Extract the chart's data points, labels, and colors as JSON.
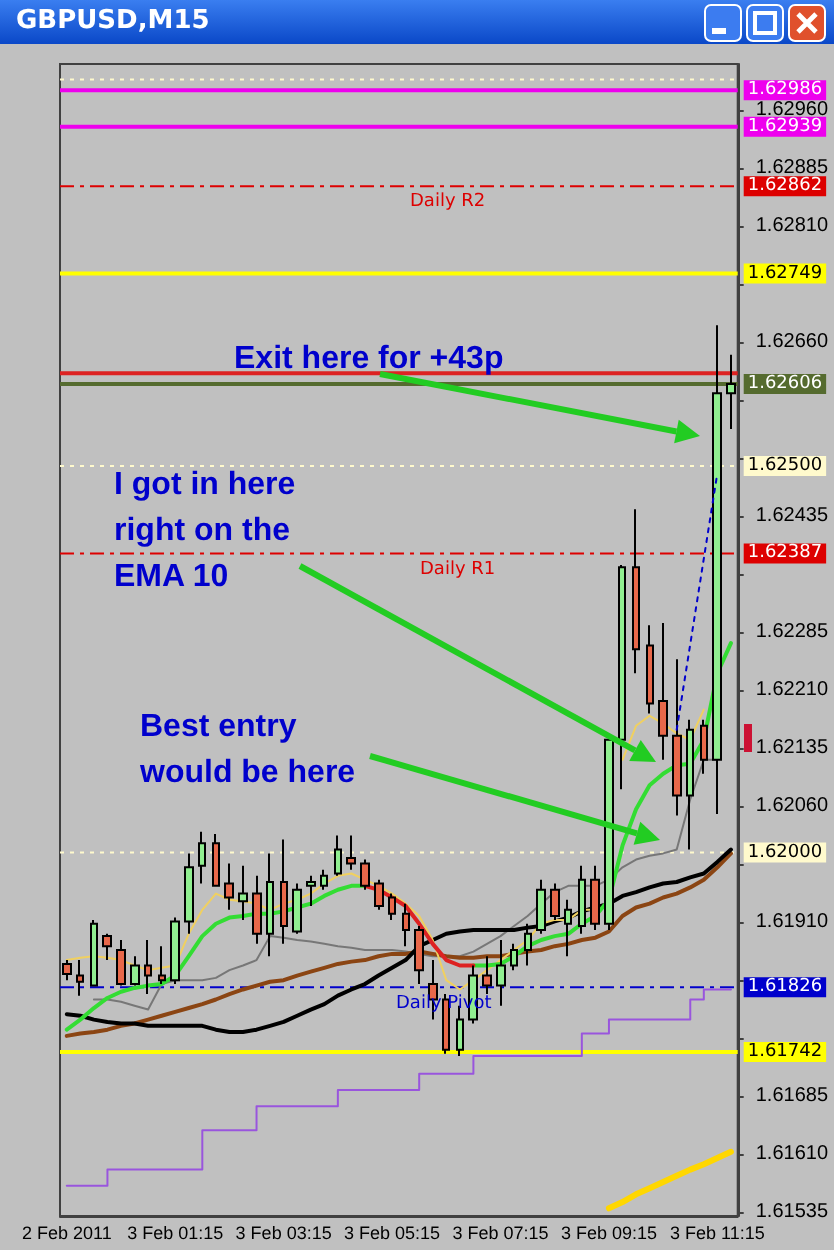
{
  "chart_data": {
    "type": "candlestick",
    "title": "GBPUSD,M15",
    "categories": [
      "2 Feb 2011",
      null,
      null,
      null,
      null,
      null,
      null,
      null,
      "3 Feb 01:15",
      null,
      null,
      null,
      null,
      null,
      null,
      null,
      "3 Feb 03:15",
      null,
      null,
      null,
      null,
      null,
      null,
      null,
      "3 Feb 05:15",
      null,
      null,
      null,
      null,
      null,
      null,
      null,
      "3 Feb 07:15",
      null,
      null,
      null,
      null,
      null,
      null,
      null,
      "3 Feb 09:15",
      null,
      null,
      null,
      null,
      null,
      null,
      null,
      "3 Feb 11:15",
      null
    ],
    "ohlc": [
      [
        1.61856,
        1.61861,
        1.61835,
        1.61843
      ],
      [
        1.61841,
        1.61861,
        1.61815,
        1.61833
      ],
      [
        1.61828,
        1.61913,
        1.61828,
        1.61908
      ],
      [
        1.61892,
        1.61895,
        1.61861,
        1.61879
      ],
      [
        1.61874,
        1.61887,
        1.61828,
        1.6183
      ],
      [
        1.6183,
        1.61866,
        1.61828,
        1.61854
      ],
      [
        1.61854,
        1.61887,
        1.61817,
        1.61841
      ],
      [
        1.61841,
        1.61879,
        1.6183,
        1.61835
      ],
      [
        1.61835,
        1.61916,
        1.6183,
        1.61911
      ],
      [
        1.61911,
        1.61999,
        1.61895,
        1.61981
      ],
      [
        1.61983,
        1.62027,
        1.6196,
        1.62012
      ],
      [
        1.62012,
        1.62024,
        1.61957,
        1.61957
      ],
      [
        1.6196,
        1.61986,
        1.61926,
        1.61942
      ],
      [
        1.61937,
        1.61983,
        1.61913,
        1.61947
      ],
      [
        1.61947,
        1.6197,
        1.61882,
        1.61895
      ],
      [
        1.61895,
        1.61999,
        1.61866,
        1.61962
      ],
      [
        1.61962,
        1.62017,
        1.61882,
        1.61905
      ],
      [
        1.61898,
        1.6196,
        1.61895,
        1.61952
      ],
      [
        1.61957,
        1.6197,
        1.61931,
        1.61962
      ],
      [
        1.61957,
        1.61978,
        1.61952,
        1.6197
      ],
      [
        1.61973,
        1.62022,
        1.6197,
        1.62004
      ],
      [
        1.61993,
        1.62022,
        1.61978,
        1.61986
      ],
      [
        1.61986,
        1.61991,
        1.61952,
        1.61957
      ],
      [
        1.6196,
        1.61965,
        1.61926,
        1.61931
      ],
      [
        1.61942,
        1.61947,
        1.61913,
        1.61921
      ],
      [
        1.61921,
        1.61934,
        1.61879,
        1.619
      ],
      [
        1.619,
        1.61905,
        1.6183,
        1.61848
      ],
      [
        1.6183,
        1.61861,
        1.61784,
        1.6181
      ],
      [
        1.6181,
        1.61817,
        1.6174,
        1.61745
      ],
      [
        1.61745,
        1.61802,
        1.61737,
        1.61784
      ],
      [
        1.61784,
        1.61854,
        1.61779,
        1.61841
      ],
      [
        1.61841,
        1.61866,
        1.61817,
        1.61828
      ],
      [
        1.61828,
        1.61887,
        1.61802,
        1.61854
      ],
      [
        1.61854,
        1.61882,
        1.61848,
        1.61874
      ],
      [
        1.61874,
        1.61908,
        1.61854,
        1.61895
      ],
      [
        1.619,
        1.61965,
        1.61895,
        1.61952
      ],
      [
        1.61952,
        1.6196,
        1.61913,
        1.61918
      ],
      [
        1.61908,
        1.61939,
        1.61866,
        1.61926
      ],
      [
        1.61905,
        1.61983,
        1.61895,
        1.61965
      ],
      [
        1.61965,
        1.61983,
        1.619,
        1.61908
      ],
      [
        1.61908,
        1.62146,
        1.619,
        1.62146
      ],
      [
        1.62146,
        1.62372,
        1.62082,
        1.62369
      ],
      [
        1.62369,
        1.62444,
        1.62232,
        1.62263
      ],
      [
        1.62268,
        1.62294,
        1.6218,
        1.62193
      ],
      [
        1.62196,
        1.62297,
        1.6212,
        1.62151
      ],
      [
        1.62151,
        1.6225,
        1.62048,
        1.62074
      ],
      [
        1.62074,
        1.62172,
        1.62004,
        1.62159
      ],
      [
        1.62164,
        1.62172,
        1.62102,
        1.6212
      ],
      [
        1.6212,
        1.62682,
        1.6205,
        1.62594
      ],
      [
        1.62594,
        1.62644,
        1.62548,
        1.62606
      ]
    ],
    "colors": [
      "#e8684a",
      "#e8684a",
      "#90ee90",
      "#e8684a",
      "#e8684a",
      "#90ee90",
      "#e8684a",
      "#e8684a",
      "#90ee90",
      "#90ee90",
      "#90ee90",
      "#e8684a",
      "#e8684a",
      "#90ee90",
      "#e8684a",
      "#90ee90",
      "#e8684a",
      "#90ee90",
      "#90ee90",
      "#90ee90",
      "#90ee90",
      "#e8684a",
      "#e8684a",
      "#e8684a",
      "#e8684a",
      "#e8684a",
      "#e8684a",
      "#e8684a",
      "#e8684a",
      "#90ee90",
      "#90ee90",
      "#e8684a",
      "#90ee90",
      "#90ee90",
      "#90ee90",
      "#90ee90",
      "#e8684a",
      "#90ee90",
      "#90ee90",
      "#e8684a",
      "#90ee90",
      "#90ee90",
      "#e8684a",
      "#e8684a",
      "#e8684a",
      "#e8684a",
      "#90ee90",
      "#e8684a",
      "#90ee90",
      "#90ee90"
    ],
    "series": [
      {
        "type": "step",
        "color": "#9955dd",
        "values": [
          1.61569,
          1.61569,
          1.61569,
          1.6159,
          1.6159,
          1.6159,
          1.6159,
          1.6159,
          1.6159,
          1.6159,
          1.61641,
          1.61641,
          1.61641,
          1.61641,
          1.61672,
          1.61672,
          1.61672,
          1.61672,
          1.61672,
          1.61672,
          1.61693,
          1.61693,
          1.61693,
          1.61693,
          1.61693,
          1.61693,
          1.61714,
          1.61714,
          1.61714,
          1.61714,
          1.61737,
          1.61737,
          1.61737,
          1.61737,
          1.61737,
          1.61737,
          1.61737,
          1.61737,
          1.61766,
          1.61766,
          1.61784,
          1.61784,
          1.61784,
          1.61784,
          1.61784,
          1.61784,
          1.6181,
          1.61823,
          1.61823,
          1.61823
        ]
      },
      {
        "type": "line",
        "color": "#ffd700",
        "values": [
          null,
          null,
          null,
          null,
          null,
          null,
          null,
          null,
          null,
          null,
          null,
          null,
          null,
          null,
          null,
          null,
          null,
          null,
          null,
          null,
          null,
          null,
          null,
          null,
          null,
          null,
          null,
          null,
          null,
          null,
          null,
          null,
          null,
          null,
          null,
          null,
          null,
          null,
          null,
          null,
          1.6154,
          1.61548,
          1.61558,
          1.61566,
          1.61574,
          1.61582,
          1.6159,
          1.61597,
          1.61605,
          1.61613
        ]
      },
      {
        "type": "line",
        "color": "#777777",
        "values": [
          null,
          null,
          1.6181,
          1.6181,
          1.61807,
          1.61802,
          1.61797,
          1.6183,
          1.61835,
          1.61835,
          1.61835,
          1.61838,
          1.61848,
          1.61854,
          1.61861,
          1.61892,
          1.6189,
          1.61887,
          1.61885,
          1.61882,
          1.61879,
          1.61877,
          1.61874,
          1.61874,
          1.61874,
          1.61872,
          1.61869,
          1.61866,
          1.61866,
          1.61866,
          1.61872,
          1.61882,
          1.61892,
          1.61905,
          1.61918,
          1.61934,
          1.61949,
          1.61957,
          1.61957,
          1.61957,
          1.61965,
          1.61981,
          1.61991,
          1.61996,
          1.61999,
          1.62004,
          1.62069,
          1.6212,
          1.6212,
          null
        ]
      },
      {
        "type": "line",
        "color": "#8b4513",
        "values": [
          1.61763,
          1.61766,
          1.61768,
          1.61771,
          1.61776,
          1.61779,
          1.61784,
          1.61789,
          1.61794,
          1.61799,
          1.61804,
          1.6181,
          1.61817,
          1.61823,
          1.61828,
          1.61833,
          1.61835,
          1.61841,
          1.61846,
          1.61851,
          1.61856,
          1.61859,
          1.61861,
          1.61866,
          1.61869,
          1.61869,
          1.61872,
          1.61869,
          1.61866,
          1.61864,
          1.61864,
          1.61866,
          1.61866,
          1.61869,
          1.61872,
          1.61874,
          1.61879,
          1.61882,
          1.61887,
          1.6189,
          1.61898,
          1.61918,
          1.61929,
          1.61934,
          1.61942,
          1.61947,
          1.61955,
          1.61965,
          1.61981,
          1.61999
        ]
      },
      {
        "type": "line",
        "color": "#000000",
        "values": [
          1.61791,
          1.61789,
          1.61784,
          1.61781,
          1.61779,
          1.61779,
          1.61776,
          1.61776,
          1.61776,
          1.61776,
          1.61776,
          1.61771,
          1.61768,
          1.61768,
          1.61771,
          1.61776,
          1.61781,
          1.61789,
          1.61797,
          1.61804,
          1.61815,
          1.61823,
          1.6183,
          1.61841,
          1.61851,
          1.61861,
          1.61879,
          1.61887,
          1.61895,
          1.61898,
          1.619,
          1.619,
          1.619,
          1.619,
          1.61903,
          1.61905,
          1.61911,
          1.61916,
          1.61924,
          1.61929,
          1.61934,
          1.61944,
          1.61949,
          1.61955,
          1.6196,
          1.61962,
          1.61968,
          1.61973,
          1.61988,
          1.62004
        ]
      },
      {
        "type": "line",
        "color": "#f0d060",
        "values": [
          1.61861,
          1.61864,
          1.61866,
          1.61864,
          1.61861,
          1.61854,
          1.61848,
          1.61851,
          1.61854,
          1.61895,
          1.61926,
          1.61947,
          1.61939,
          1.61937,
          1.61934,
          1.61926,
          1.61934,
          1.61939,
          1.61947,
          1.6196,
          1.6197,
          1.61973,
          1.61965,
          1.61957,
          1.61947,
          1.61934,
          1.61918,
          1.61887,
          1.61835,
          1.61823,
          1.61835,
          1.61848,
          1.61861,
          1.61874,
          1.61887,
          1.61908,
          1.61913,
          1.61913,
          1.61926,
          1.61926,
          null,
          1.6212,
          1.62164,
          1.62177,
          1.62167,
          1.62154,
          1.62146,
          1.62185,
          null,
          null
        ]
      },
      {
        "type": "line",
        "color": "#33dd33",
        "values": [
          1.61771,
          1.61784,
          1.61799,
          1.61812,
          1.6182,
          1.61825,
          1.61828,
          1.6183,
          1.61841,
          1.61866,
          1.61892,
          1.61908,
          1.61916,
          1.61918,
          1.61921,
          1.61921,
          1.61924,
          1.61929,
          1.61934,
          1.61944,
          1.61952,
          1.61957,
          1.61957,
          null,
          null,
          null,
          null,
          null,
          null,
          null,
          1.61854,
          1.61854,
          1.61856,
          1.61866,
          1.61879,
          1.61887,
          1.61892,
          1.61895,
          1.61908,
          1.61918,
          1.61939,
          1.62009,
          1.62056,
          1.62087,
          1.62102,
          1.62113,
          1.62115,
          1.62146,
          1.62232,
          1.62271
        ]
      },
      {
        "type": "line",
        "color": "#dd2222",
        "values": [
          null,
          null,
          null,
          null,
          null,
          null,
          null,
          null,
          null,
          null,
          null,
          null,
          null,
          null,
          null,
          null,
          null,
          null,
          null,
          null,
          null,
          null,
          1.61957,
          1.61952,
          1.61942,
          1.61931,
          1.61908,
          1.61882,
          1.61861,
          1.61854,
          1.61854,
          null,
          null,
          null,
          null,
          null,
          null,
          null,
          null,
          null,
          null,
          null,
          null,
          null,
          null,
          null,
          null,
          null,
          null,
          null
        ]
      },
      {
        "type": "line",
        "color": "#0000cc",
        "line_style": "dotted",
        "values": [
          null,
          null,
          null,
          null,
          null,
          null,
          null,
          null,
          null,
          null,
          null,
          null,
          null,
          null,
          null,
          null,
          null,
          null,
          null,
          null,
          null,
          null,
          null,
          null,
          null,
          null,
          null,
          null,
          null,
          null,
          null,
          null,
          null,
          null,
          null,
          null,
          null,
          null,
          null,
          null,
          null,
          null,
          null,
          null,
          null,
          1.62159,
          null,
          null,
          1.62491,
          null
        ]
      }
    ],
    "ylim": [
      1.6153,
      1.6302
    ],
    "yticks": [
      1.61535,
      {
        "value": 1.6161,
        "label": "1.61610"
      },
      1.61685,
      {
        "value": 1.6176,
        "label": null
      },
      {
        "value": 1.61835,
        "label": null
      },
      {
        "value": 1.6191,
        "label": "1.61910"
      },
      {
        "value": 1.61985,
        "label": null
      },
      {
        "value": 1.6206,
        "label": "1.62060"
      },
      1.62135,
      {
        "value": 1.6221,
        "label": "1.62210"
      },
      1.62285,
      {
        "value": 1.6236,
        "label": null
      },
      1.62435,
      {
        "value": 1.6251,
        "label": null
      },
      {
        "value": 1.62585,
        "label": null
      },
      {
        "value": 1.6266,
        "label": "1.62660"
      },
      {
        "value": 1.62735,
        "label": null
      },
      {
        "value": 1.6281,
        "label": "1.62810"
      },
      1.62885,
      {
        "value": 1.6296,
        "label": "1.62960"
      }
    ],
    "ref_lines": [
      {
        "axis": "y",
        "value": 1.63,
        "label": null,
        "color": "#fffacd",
        "line_style": "dotted"
      },
      {
        "axis": "y",
        "value": 1.62986,
        "label": "1.62986",
        "color": "#ee00ee",
        "line_style": "solid"
      },
      {
        "axis": "y",
        "value": 1.62939,
        "label": "1.62939",
        "color": "#ee00ee",
        "line_style": "solid"
      },
      {
        "axis": "y",
        "value": 1.62862,
        "label": "1.62862",
        "color": "#dd0000",
        "line_style": "dashed"
      },
      {
        "axis": "y",
        "value": 1.62749,
        "label": "1.62749",
        "color": "#ffff00",
        "line_style": "solid"
      },
      {
        "axis": "y",
        "value": 1.6262,
        "label": null,
        "color": "#dd2222",
        "line_style": "solid"
      },
      {
        "axis": "y",
        "value": 1.62606,
        "label": "1.62606",
        "color": "#556b2f",
        "line_style": "solid"
      },
      {
        "axis": "y",
        "value": 1.625,
        "label": "1.62500",
        "color": "#fffacd",
        "line_style": "dotted"
      },
      {
        "axis": "y",
        "value": 1.62387,
        "label": "1.62387",
        "color": "#dd0000",
        "line_style": "dashed"
      },
      {
        "axis": "y",
        "value": 1.62,
        "label": "1.62000",
        "color": "#fffacd",
        "line_style": "dotted"
      },
      {
        "axis": "y",
        "value": 1.61826,
        "label": "1.61826",
        "color": "#0000cc",
        "line_style": "dashed"
      },
      {
        "axis": "y",
        "value": 1.61742,
        "label": "1.61742",
        "color": "#ffff00",
        "line_style": "solid"
      }
    ],
    "annotations": [
      "Daily R2",
      "Daily R1",
      "Daily Pivot",
      "Exit here for +43p",
      "I got in here right on the EMA 10",
      "Best entry would be here"
    ],
    "marker": "none"
  }
}
